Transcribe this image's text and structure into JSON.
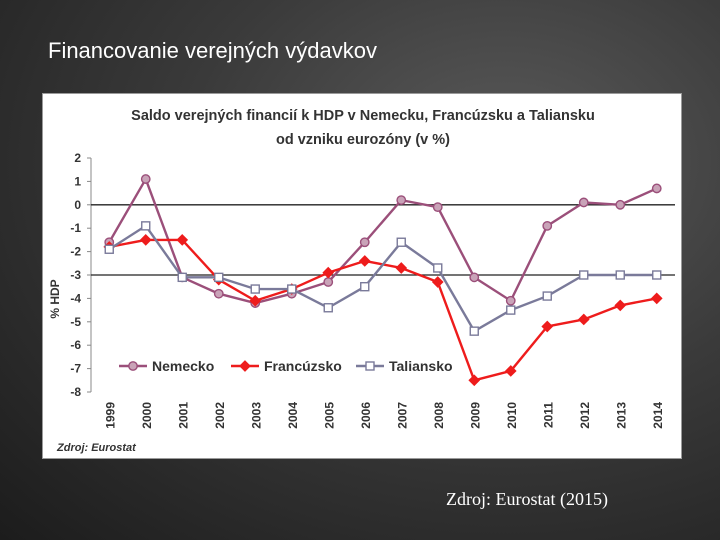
{
  "slide": {
    "title": "Financovanie verejných výdavkov",
    "source_caption": "Zdroj: Eurostat (2015)"
  },
  "chart_data": {
    "type": "line",
    "title_line1": "Saldo verejných financií k HDP v Nemecku, Francúzsku a Taliansku",
    "title_line2": "od vzniku eurozóny (v %)",
    "ylabel": "% HDP",
    "xlabel": "",
    "ylim": [
      -8,
      2
    ],
    "yticks": [
      2,
      1,
      0,
      -1,
      -2,
      -3,
      -4,
      -5,
      -6,
      -7,
      -8
    ],
    "categories": [
      "1999",
      "2000",
      "2001",
      "2002",
      "2003",
      "2004",
      "2005",
      "2006",
      "2007",
      "2008",
      "2009",
      "2010",
      "2011",
      "2012",
      "2013",
      "2014"
    ],
    "reference_lines": [
      0,
      -3
    ],
    "legend_position": "bottom-left inside plot",
    "source_note": "Zdroj: Eurostat",
    "series": [
      {
        "name": "Nemecko",
        "color": "#9b4f7a",
        "marker": "circle",
        "values": [
          -1.6,
          1.1,
          -3.1,
          -3.8,
          -4.2,
          -3.8,
          -3.3,
          -1.6,
          0.2,
          -0.1,
          -3.1,
          -4.1,
          -0.9,
          0.1,
          0.0,
          0.7
        ]
      },
      {
        "name": "Francúzsko",
        "color": "#ee1c1c",
        "marker": "diamond",
        "values": [
          -1.8,
          -1.5,
          -1.5,
          -3.2,
          -4.1,
          -3.6,
          -2.9,
          -2.4,
          -2.7,
          -3.3,
          -7.5,
          -7.1,
          -5.2,
          -4.9,
          -4.3,
          -4.0
        ]
      },
      {
        "name": "Taliansko",
        "color": "#7a7a9a",
        "marker": "square",
        "values": [
          -1.9,
          -0.9,
          -3.1,
          -3.1,
          -3.6,
          -3.6,
          -4.4,
          -3.5,
          -1.6,
          -2.7,
          -5.4,
          -4.5,
          -3.9,
          -3.0,
          -3.0,
          -3.0
        ]
      }
    ]
  }
}
